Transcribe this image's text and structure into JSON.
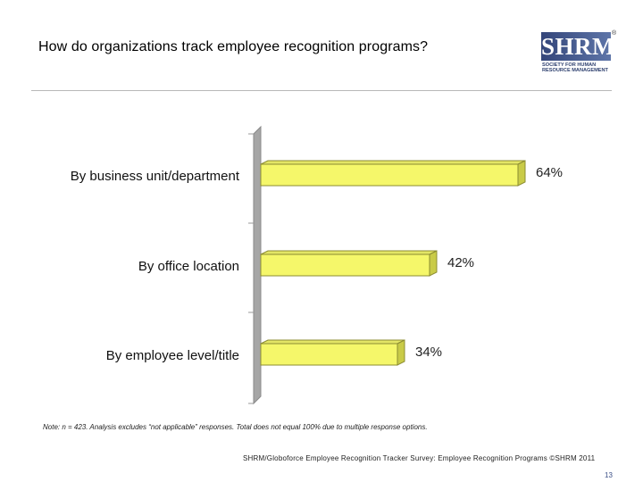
{
  "slide": {
    "title": "How do organizations track employee recognition programs?",
    "note": "Note: n = 423. Analysis excludes “not applicable” responses. Total does not equal 100% due to multiple response options.",
    "source": "SHRM/Globoforce Employee Recognition Tracker Survey: Employee Recognition Programs ©SHRM 2011",
    "page_number": "13"
  },
  "logo": {
    "name": "SHRM",
    "tagline": "SOCIETY FOR HUMAN\nRESOURCE MANAGEMENT",
    "registered_mark": "®"
  },
  "colors": {
    "bar_fill": "#f5f76a",
    "bar_edge": "#8c8c32",
    "wall": "#a6a6a6",
    "logo_blue": "#34467a"
  },
  "chart_data": {
    "type": "bar",
    "orientation": "horizontal",
    "style": "3d",
    "categories": [
      "By business unit/department",
      "By office location",
      "By employee level/title"
    ],
    "values": [
      64,
      42,
      34
    ],
    "data_labels": [
      "64%",
      "42%",
      "34%"
    ],
    "unit": "%",
    "xlim": [
      0,
      100
    ],
    "title": "",
    "xlabel": "",
    "ylabel": "",
    "grid": false,
    "legend": "none"
  }
}
